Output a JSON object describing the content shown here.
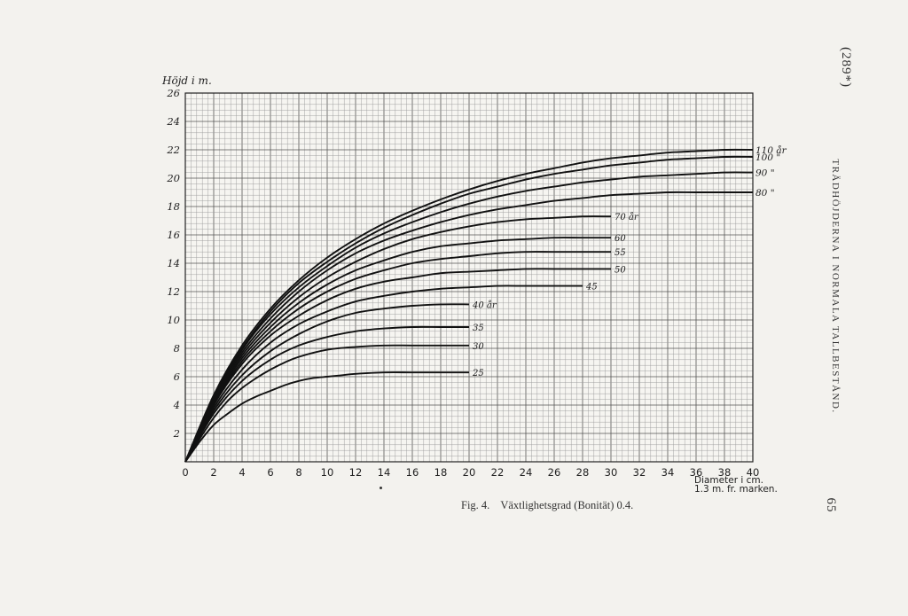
{
  "page": {
    "page_number_top": "(289*)",
    "running_head": "TRÄDHÖJDERNA I NORMALA TALLBESTÅND.",
    "page_number_bottom": "65",
    "caption_fig": "Fig. 4.",
    "caption_text": "Växtlighetsgrad (Bonität) 0.4."
  },
  "chart_data": {
    "type": "line",
    "ylabel": "Höjd i m.",
    "xlabel_lines": [
      "Diameter i cm.",
      "1.3 m. fr. marken."
    ],
    "xlim": [
      0,
      40
    ],
    "ylim": [
      0,
      26
    ],
    "x_ticks": [
      "0",
      "2",
      "4",
      "6",
      "8",
      "10",
      "12",
      "14",
      "16",
      "18",
      "20",
      "22",
      "24",
      "26",
      "28",
      "30",
      "32",
      "34",
      "36",
      "38",
      "40"
    ],
    "y_ticks": [
      "2",
      "4",
      "6",
      "8",
      "10",
      "12",
      "14",
      "16",
      "18",
      "20",
      "22",
      "24",
      "26"
    ],
    "grid": true,
    "series": [
      {
        "name": "25 år",
        "label": "25",
        "x": [
          0,
          1,
          2,
          3,
          4,
          5,
          6,
          7,
          8,
          9,
          10,
          11,
          12,
          14,
          16,
          18,
          20
        ],
        "y": [
          0,
          1.4,
          2.6,
          3.4,
          4.1,
          4.6,
          5.0,
          5.4,
          5.7,
          5.9,
          6.0,
          6.1,
          6.2,
          6.3,
          6.3,
          6.3,
          6.3
        ]
      },
      {
        "name": "30 år",
        "label": "30",
        "x": [
          0,
          1,
          2,
          3,
          4,
          5,
          6,
          7,
          8,
          10,
          12,
          14,
          16,
          18,
          20
        ],
        "y": [
          0,
          1.6,
          3.1,
          4.3,
          5.2,
          5.9,
          6.5,
          7.0,
          7.4,
          7.9,
          8.1,
          8.2,
          8.2,
          8.2,
          8.2
        ]
      },
      {
        "name": "35 år",
        "label": "35",
        "x": [
          0,
          2,
          4,
          6,
          8,
          10,
          12,
          14,
          16,
          18,
          20
        ],
        "y": [
          0,
          3.4,
          5.7,
          7.2,
          8.2,
          8.8,
          9.2,
          9.4,
          9.5,
          9.5,
          9.5
        ]
      },
      {
        "name": "40 år",
        "label": "40 år",
        "x": [
          0,
          2,
          4,
          6,
          8,
          10,
          12,
          14,
          16,
          18,
          20
        ],
        "y": [
          0,
          3.6,
          6.1,
          7.8,
          9.0,
          9.9,
          10.5,
          10.8,
          11.0,
          11.1,
          11.1
        ]
      },
      {
        "name": "45 år",
        "label": "45",
        "x": [
          0,
          2,
          4,
          6,
          8,
          10,
          12,
          14,
          16,
          18,
          20,
          22,
          24,
          26,
          28
        ],
        "y": [
          0,
          3.8,
          6.5,
          8.4,
          9.7,
          10.6,
          11.3,
          11.7,
          12.0,
          12.2,
          12.3,
          12.4,
          12.4,
          12.4,
          12.4
        ]
      },
      {
        "name": "50 år",
        "label": "50",
        "x": [
          0,
          2,
          4,
          6,
          8,
          10,
          12,
          14,
          16,
          18,
          20,
          22,
          24,
          26,
          28,
          30
        ],
        "y": [
          0,
          4.0,
          6.9,
          8.9,
          10.3,
          11.4,
          12.2,
          12.7,
          13.0,
          13.3,
          13.4,
          13.5,
          13.6,
          13.6,
          13.6,
          13.6
        ]
      },
      {
        "name": "55 år",
        "label": "55",
        "x": [
          0,
          2,
          4,
          6,
          8,
          10,
          12,
          14,
          16,
          18,
          20,
          22,
          24,
          26,
          28,
          30
        ],
        "y": [
          0,
          4.1,
          7.1,
          9.2,
          10.8,
          12.0,
          12.9,
          13.5,
          14.0,
          14.3,
          14.5,
          14.7,
          14.8,
          14.8,
          14.8,
          14.8
        ]
      },
      {
        "name": "60 år",
        "label": "60",
        "x": [
          0,
          2,
          4,
          6,
          8,
          10,
          12,
          14,
          16,
          18,
          20,
          22,
          24,
          26,
          28,
          30
        ],
        "y": [
          0,
          4.2,
          7.3,
          9.5,
          11.2,
          12.5,
          13.5,
          14.2,
          14.8,
          15.2,
          15.4,
          15.6,
          15.7,
          15.8,
          15.8,
          15.8
        ]
      },
      {
        "name": "70 år",
        "label": "70 år",
        "x": [
          0,
          2,
          4,
          6,
          8,
          10,
          12,
          14,
          16,
          18,
          20,
          22,
          24,
          26,
          28,
          30
        ],
        "y": [
          0,
          4.3,
          7.5,
          9.8,
          11.6,
          13.0,
          14.1,
          15.0,
          15.7,
          16.2,
          16.6,
          16.9,
          17.1,
          17.2,
          17.3,
          17.3
        ]
      },
      {
        "name": "80 år",
        "label": "80 \"",
        "x": [
          0,
          2,
          4,
          6,
          8,
          10,
          12,
          14,
          16,
          18,
          20,
          22,
          24,
          26,
          28,
          30,
          32,
          34,
          36,
          38,
          40
        ],
        "y": [
          0,
          4.4,
          7.7,
          10.1,
          12.0,
          13.5,
          14.7,
          15.6,
          16.3,
          16.9,
          17.4,
          17.8,
          18.1,
          18.4,
          18.6,
          18.8,
          18.9,
          19.0,
          19.0,
          19.0,
          19.0
        ]
      },
      {
        "name": "90 år",
        "label": "90 \"",
        "x": [
          0,
          2,
          4,
          6,
          8,
          10,
          12,
          14,
          16,
          18,
          20,
          22,
          24,
          26,
          28,
          30,
          32,
          34,
          36,
          38,
          40
        ],
        "y": [
          0,
          4.5,
          7.9,
          10.4,
          12.3,
          13.8,
          15.1,
          16.1,
          16.9,
          17.6,
          18.2,
          18.7,
          19.1,
          19.4,
          19.7,
          19.9,
          20.1,
          20.2,
          20.3,
          20.4,
          20.4
        ]
      },
      {
        "name": "100 år",
        "label": "100 \"",
        "x": [
          0,
          2,
          4,
          6,
          8,
          10,
          12,
          14,
          16,
          18,
          20,
          22,
          24,
          26,
          28,
          30,
          32,
          34,
          36,
          38,
          40
        ],
        "y": [
          0,
          4.6,
          8.0,
          10.6,
          12.6,
          14.1,
          15.4,
          16.5,
          17.4,
          18.2,
          18.9,
          19.4,
          19.9,
          20.3,
          20.6,
          20.9,
          21.1,
          21.3,
          21.4,
          21.5,
          21.5
        ]
      },
      {
        "name": "110 år",
        "label": "110 år",
        "x": [
          0,
          2,
          4,
          6,
          8,
          10,
          12,
          14,
          16,
          18,
          20,
          22,
          24,
          26,
          28,
          30,
          32,
          34,
          36,
          38,
          40
        ],
        "y": [
          0,
          4.7,
          8.2,
          10.8,
          12.8,
          14.4,
          15.7,
          16.8,
          17.7,
          18.5,
          19.2,
          19.8,
          20.3,
          20.7,
          21.1,
          21.4,
          21.6,
          21.8,
          21.9,
          22.0,
          22.0
        ]
      }
    ]
  }
}
